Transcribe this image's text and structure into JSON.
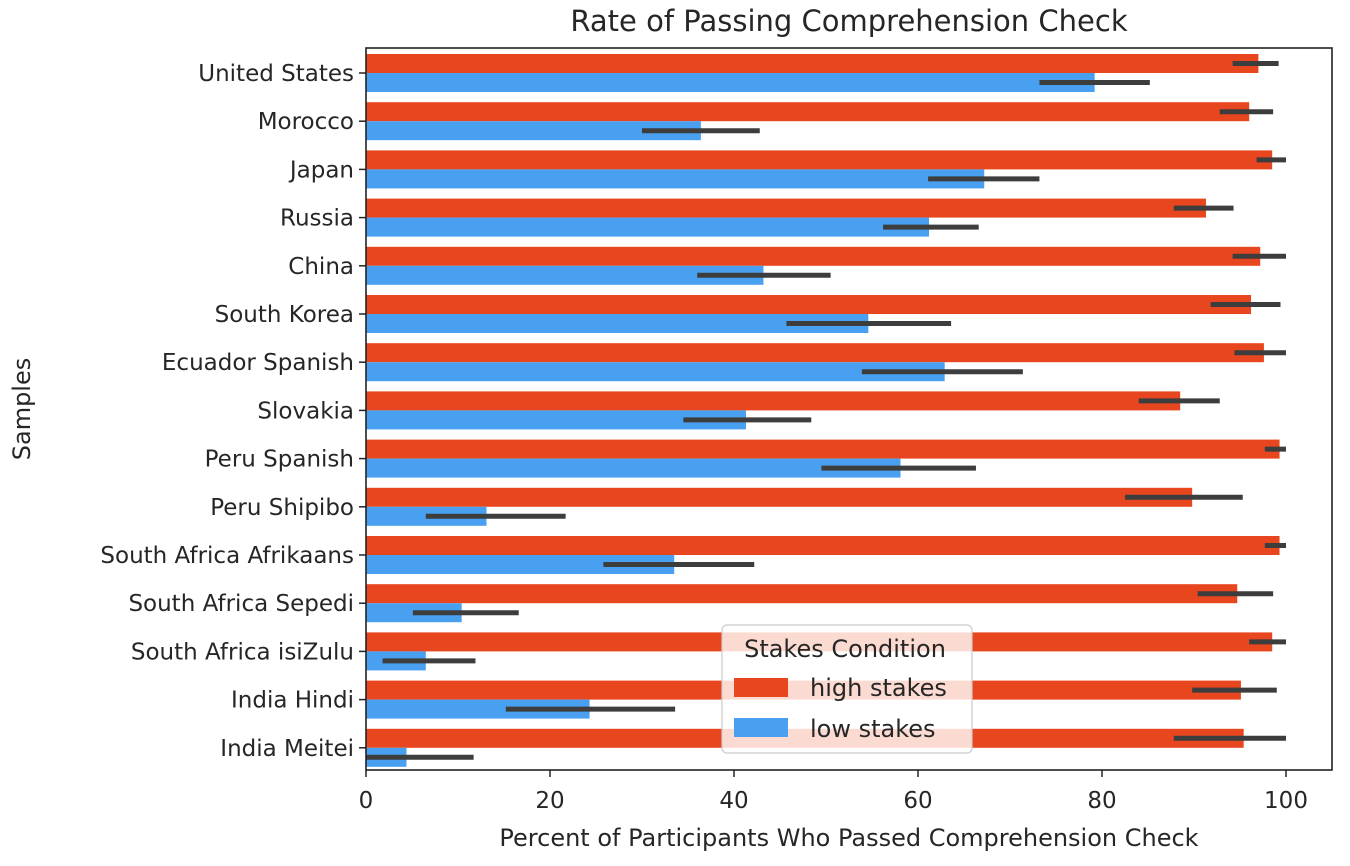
{
  "chart_data": {
    "type": "bar",
    "orientation": "horizontal",
    "title": "Rate of Passing Comprehension Check",
    "xlabel": "Percent of Participants Who Passed Comprehension Check",
    "ylabel": "Samples",
    "xlim": [
      0,
      105
    ],
    "xticks": [
      0,
      20,
      40,
      60,
      80,
      100
    ],
    "grid": false,
    "legend": {
      "title": "Stakes Condition",
      "placement": "lower-center"
    },
    "categories": [
      "United States",
      "Morocco",
      "Japan",
      "Russia",
      "China",
      "South Korea",
      "Ecuador Spanish",
      "Slovakia",
      "Peru Spanish",
      "Peru Shipibo",
      "South Africa Afrikaans",
      "South Africa Sepedi",
      "South Africa isiZulu",
      "India Hindi",
      "India Meitei"
    ],
    "series": [
      {
        "name": "high stakes",
        "color": "#E8461E",
        "values": [
          97,
          96,
          98.5,
          91.3,
          97.2,
          96.2,
          97.6,
          88.5,
          99.3,
          89.8,
          99.3,
          94.7,
          98.5,
          95.1,
          95.4
        ],
        "ci_low": [
          94.2,
          92.8,
          96.8,
          87.8,
          94.2,
          91.8,
          94.4,
          84,
          97.7,
          82.5,
          97.7,
          90.4,
          96,
          89.8,
          87.8
        ],
        "ci_high": [
          99.2,
          98.6,
          100,
          94.3,
          100,
          99.4,
          100,
          92.8,
          100,
          95.3,
          100,
          98.6,
          100,
          99,
          100
        ]
      },
      {
        "name": "low stakes",
        "color": "#4AA0F0",
        "values": [
          79.2,
          36.4,
          67.2,
          61.2,
          43.2,
          54.6,
          62.9,
          41.3,
          58.1,
          13.1,
          33.5,
          10.4,
          6.5,
          24.3,
          4.4
        ],
        "ci_low": [
          73.2,
          30,
          61.1,
          56.2,
          36,
          45.7,
          53.9,
          34.5,
          49.5,
          6.5,
          25.8,
          5.1,
          1.8,
          15.2,
          0
        ],
        "ci_high": [
          85.2,
          42.8,
          73.2,
          66.6,
          50.5,
          63.6,
          71.4,
          48.4,
          66.3,
          21.7,
          42.2,
          16.6,
          11.9,
          33.6,
          11.7
        ]
      }
    ]
  }
}
